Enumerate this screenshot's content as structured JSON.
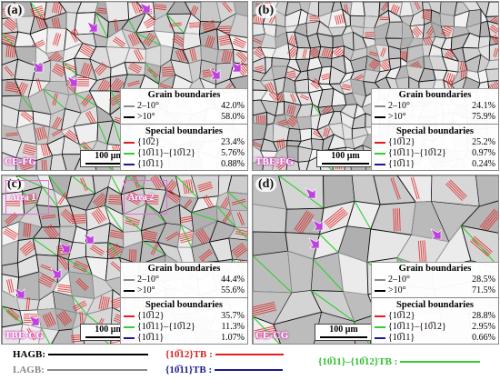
{
  "colors": {
    "hagb": "#000000",
    "lagb": "#8a8a8a",
    "tb_1012": "#e02020",
    "tb_1011_1012": "#33cc33",
    "tb_1011": "#1a1a90",
    "arrow": "#c040e0",
    "frame": "#e46fd4"
  },
  "panels": [
    {
      "letter": "(a)",
      "condition": "CE-FG",
      "scale": "100 μm",
      "grain_header": "Grain boundaries",
      "special_header": "Special boundaries",
      "rows": [
        {
          "label": "2–10°",
          "value": "42.0%"
        },
        {
          "label": ">10°",
          "value": "58.0%"
        },
        {
          "label": "{10̅2}",
          "value": "23.4%"
        },
        {
          "label": "{10̅11}–{10̅12}",
          "value": "5.76%"
        },
        {
          "label": "{10̅11}",
          "value": "0.88%"
        }
      ]
    },
    {
      "letter": "(b)",
      "condition": "TBE-FG",
      "scale": "100 μm",
      "grain_header": "Grain boundaries",
      "special_header": "Special boundaries",
      "rows": [
        {
          "label": "2–10°",
          "value": "24.1%"
        },
        {
          "label": ">10°",
          "value": "75.9%"
        },
        {
          "label": "{10̅12}",
          "value": "25.2%"
        },
        {
          "label": "{10̅11}–{10̅12}",
          "value": "0.97%"
        },
        {
          "label": "{10̅11}",
          "value": "0.24%"
        }
      ]
    },
    {
      "letter": "(c)",
      "condition": "TBE-CG",
      "scale": "100 μm",
      "grain_header": "Grain boundaries",
      "special_header": "Special boundaries",
      "area_1": "Area 1",
      "area_2": "Area 2",
      "rows": [
        {
          "label": "2–10°",
          "value": "44.4%"
        },
        {
          "label": ">10°",
          "value": "55.6%"
        },
        {
          "label": "{10̅12}",
          "value": "35.7%"
        },
        {
          "label": "{10̅11}–{10̅12}",
          "value": "11.3%"
        },
        {
          "label": "{10̅11}",
          "value": "1.07%"
        }
      ]
    },
    {
      "letter": "(d)",
      "condition": "CE-CG",
      "scale": "100 μm",
      "grain_header": "Grain boundaries",
      "special_header": "Special boundaries",
      "rows": [
        {
          "label": "2–10°",
          "value": "28.5%"
        },
        {
          "label": ">10°",
          "value": "71.5%"
        },
        {
          "label": "{10̅12}",
          "value": "28.8%"
        },
        {
          "label": "{10̅11}–{10̅12}",
          "value": "2.95%"
        },
        {
          "label": "{10̅11}",
          "value": "0.66%"
        }
      ]
    }
  ],
  "legend": {
    "hagb": "HAGB:",
    "lagb": "LAGB:",
    "tb_1012": "{10̅12}TB :",
    "tb_1011": "{10̅11}TB :",
    "tb_1011_1012": "{10̅11}–{10̅12}TB :"
  }
}
